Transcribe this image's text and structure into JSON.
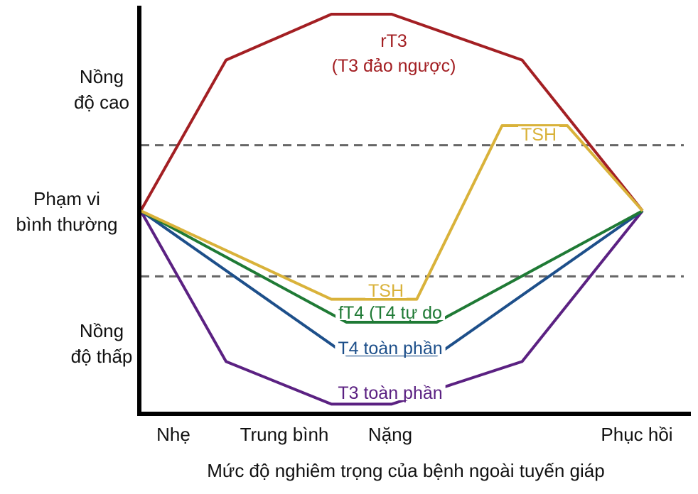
{
  "chart_data": {
    "type": "line",
    "xlabel": "Mức độ nghiêm trọng của bệnh ngoài tuyến giáp",
    "categories": [
      "Nhẹ",
      "Trung bình",
      "Nặng",
      "Phục hồi"
    ],
    "ylabels": {
      "high": [
        "Nồng",
        "độ cao"
      ],
      "normal": [
        "Phạm vi",
        "bình thường"
      ],
      "low": [
        "Nồng",
        "độ thấp"
      ]
    },
    "ylim": [
      -3,
      3
    ],
    "xlim": [
      0,
      5
    ],
    "normal_range": [
      -1,
      1
    ],
    "series": [
      {
        "name": "rT3 (T3 đảo ngược)",
        "label_lines": [
          "rT3",
          "(T3 đảo ngược)"
        ],
        "color": "#a31f23",
        "x": [
          0,
          0.85,
          1.9,
          2.5,
          3.8,
          5.0
        ],
        "y": [
          0,
          2.3,
          3.0,
          3.0,
          2.3,
          0
        ]
      },
      {
        "name": "TSH",
        "label_lines": [
          "TSH"
        ],
        "label_lines_2": [
          "TSH"
        ],
        "color": "#d9b23a",
        "x": [
          0,
          1.9,
          2.75,
          3.6,
          4.25,
          5.0
        ],
        "y": [
          0,
          -1.35,
          -1.35,
          1.3,
          1.3,
          0
        ]
      },
      {
        "name": "fT4 (T4 tự do",
        "label_lines": [
          "fT4 (T4 tự do"
        ],
        "color": "#1f7a35",
        "x": [
          0,
          2.05,
          2.95,
          5.0
        ],
        "y": [
          0,
          -1.7,
          -1.7,
          0
        ]
      },
      {
        "name": "T4 toàn phần",
        "label_lines": [
          "T4 toàn phần"
        ],
        "color": "#1d4f8a",
        "x": [
          0,
          2.05,
          2.95,
          5.0
        ],
        "y": [
          0,
          -2.2,
          -2.2,
          0
        ]
      },
      {
        "name": "T3 toàn phần",
        "label_lines": [
          "T3 toàn phần"
        ],
        "color": "#5b2182",
        "x": [
          0,
          0.85,
          1.9,
          2.5,
          3.8,
          5.0
        ],
        "y": [
          0,
          -2.3,
          -2.95,
          -2.95,
          -2.3,
          0
        ]
      }
    ],
    "grid": false,
    "legend": "none"
  }
}
